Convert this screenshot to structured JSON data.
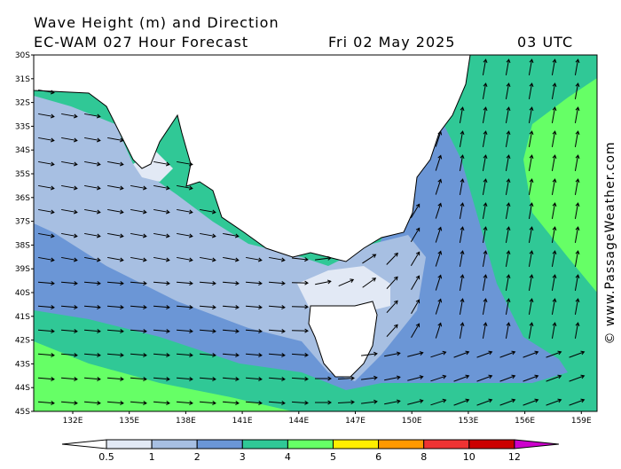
{
  "header": {
    "title": "Wave Height (m) and Direction",
    "model": "EC-WAM 027 Hour Forecast",
    "date": "Fri 02 May 2025",
    "time": "03 UTC"
  },
  "map": {
    "lat_labels": [
      "30S",
      "31S",
      "32S",
      "33S",
      "34S",
      "35S",
      "36S",
      "37S",
      "38S",
      "39S",
      "40S",
      "41S",
      "42S",
      "43S",
      "44S",
      "45S"
    ],
    "lon_labels": [
      "132E",
      "135E",
      "138E",
      "141E",
      "144E",
      "147E",
      "150E",
      "153E",
      "156E",
      "159E"
    ]
  },
  "legend": {
    "labels": [
      "0.5",
      "1",
      "2",
      "3",
      "4",
      "5",
      "6",
      "8",
      "10",
      "12"
    ],
    "colors": [
      "#ffffff",
      "#e2e9f5",
      "#a7bfe2",
      "#6b96d6",
      "#30c896",
      "#66ff66",
      "#ffee00",
      "#ff9900",
      "#ee3333",
      "#cc0000",
      "#cc00cc"
    ]
  },
  "watermark": "© www.PassageWeather.com"
}
